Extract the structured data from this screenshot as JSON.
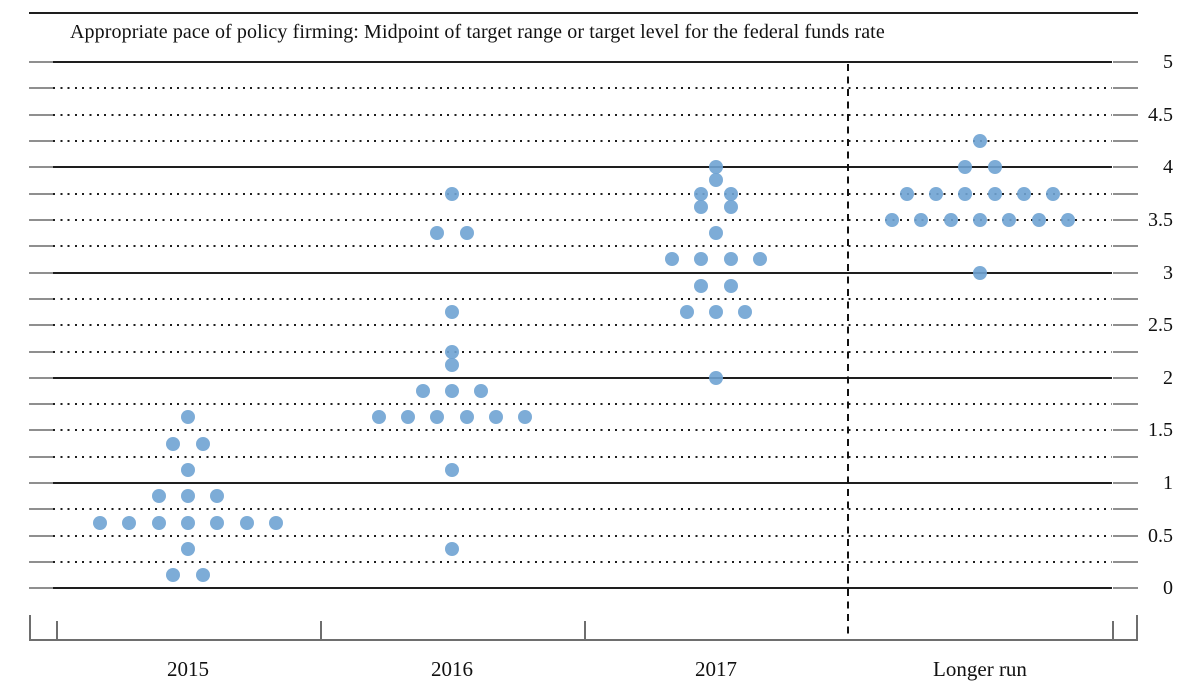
{
  "title": "Appropriate pace of policy firming: Midpoint of target range or target level for the federal funds rate",
  "chart_data": {
    "type": "scatter",
    "variant": "fomc_dot_plot",
    "x_categories": [
      "2015",
      "2016",
      "2017",
      "Longer run"
    ],
    "separator": {
      "style": "dashed",
      "between": [
        "2017",
        "Longer run"
      ]
    },
    "y_axis": {
      "side": "right",
      "min": 0,
      "max": 5,
      "label_step": 0.5,
      "minor_grid_step": 0.25,
      "tick_labels": [
        "0",
        "0.5",
        "1",
        "1.5",
        "2",
        "2.5",
        "3",
        "3.5",
        "4",
        "4.5",
        "5"
      ]
    },
    "grid": {
      "solid_at_integers": true,
      "dotted_at_quarters": true
    },
    "dot_color": "#6fa3d3",
    "projections": [
      {
        "category": "2015",
        "dots": [
          {
            "rate": 1.625,
            "count": 1
          },
          {
            "rate": 1.375,
            "count": 2
          },
          {
            "rate": 1.125,
            "count": 1
          },
          {
            "rate": 0.875,
            "count": 3
          },
          {
            "rate": 0.625,
            "count": 7
          },
          {
            "rate": 0.375,
            "count": 1
          },
          {
            "rate": 0.125,
            "count": 2
          }
        ]
      },
      {
        "category": "2016",
        "dots": [
          {
            "rate": 3.75,
            "count": 1
          },
          {
            "rate": 3.375,
            "count": 2
          },
          {
            "rate": 2.625,
            "count": 1
          },
          {
            "rate": 2.25,
            "count": 1
          },
          {
            "rate": 2.125,
            "count": 1
          },
          {
            "rate": 1.875,
            "count": 3
          },
          {
            "rate": 1.625,
            "count": 6
          },
          {
            "rate": 1.125,
            "count": 1
          },
          {
            "rate": 0.375,
            "count": 1
          }
        ]
      },
      {
        "category": "2017",
        "dots": [
          {
            "rate": 4.0,
            "count": 1
          },
          {
            "rate": 3.875,
            "count": 1
          },
          {
            "rate": 3.75,
            "count": 2
          },
          {
            "rate": 3.625,
            "count": 2
          },
          {
            "rate": 3.375,
            "count": 1
          },
          {
            "rate": 3.125,
            "count": 4
          },
          {
            "rate": 2.875,
            "count": 2
          },
          {
            "rate": 2.625,
            "count": 3
          },
          {
            "rate": 2.0,
            "count": 1
          }
        ]
      },
      {
        "category": "Longer run",
        "dots": [
          {
            "rate": 4.25,
            "count": 1
          },
          {
            "rate": 4.0,
            "count": 2
          },
          {
            "rate": 3.75,
            "count": 6
          },
          {
            "rate": 3.5,
            "count": 7
          },
          {
            "rate": 3.0,
            "count": 1
          }
        ]
      }
    ]
  }
}
